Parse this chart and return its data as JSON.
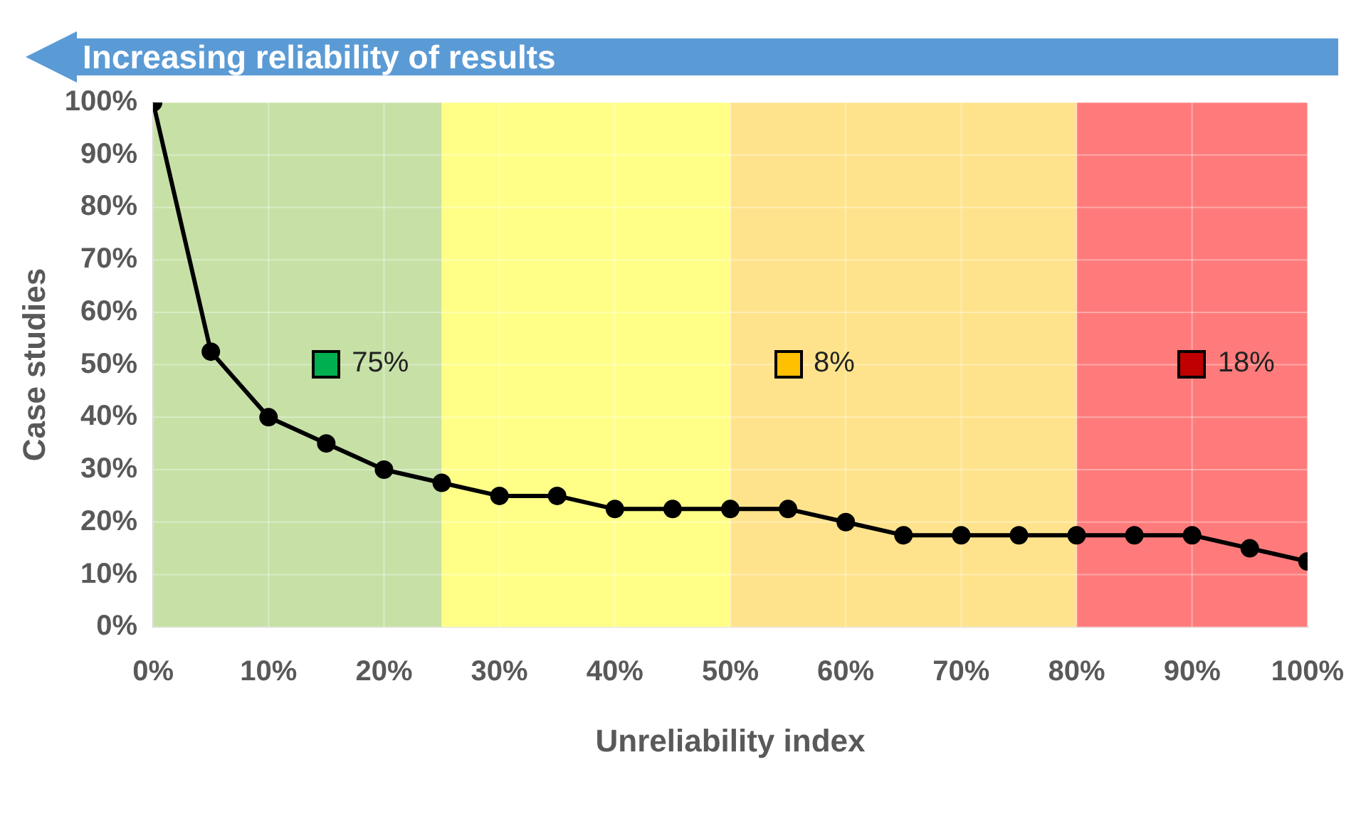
{
  "chart_data": {
    "type": "line",
    "title": "Increasing reliability of results",
    "xlabel": "Unreliability index",
    "ylabel": "Case studies",
    "x": [
      0,
      5,
      10,
      15,
      20,
      25,
      30,
      35,
      40,
      45,
      50,
      55,
      60,
      65,
      70,
      75,
      80,
      85,
      90,
      95,
      100
    ],
    "series": [
      {
        "color": "#000000",
        "values": [
          100,
          52.5,
          40,
          35,
          30,
          27.5,
          25,
          25,
          22.5,
          22.5,
          22.5,
          22.5,
          20,
          17.5,
          17.5,
          17.5,
          17.5,
          17.5,
          17.5,
          15,
          12.5
        ]
      }
    ],
    "xlim": [
      0,
      100
    ],
    "xticks": [
      {
        "value": 0,
        "label": "0%"
      },
      {
        "value": 10,
        "label": "10%"
      },
      {
        "value": 20,
        "label": "20%"
      },
      {
        "value": 30,
        "label": "30%"
      },
      {
        "value": 40,
        "label": "40%"
      },
      {
        "value": 50,
        "label": "50%"
      },
      {
        "value": 60,
        "label": "60%"
      },
      {
        "value": 70,
        "label": "70%"
      },
      {
        "value": 80,
        "label": "80%"
      },
      {
        "value": 90,
        "label": "90%"
      },
      {
        "value": 100,
        "label": "100%"
      }
    ],
    "ylim": [
      0,
      100
    ],
    "yticks": [
      {
        "value": 0,
        "label": "0%"
      },
      {
        "value": 10,
        "label": "10%"
      },
      {
        "value": 20,
        "label": "20%"
      },
      {
        "value": 30,
        "label": "30%"
      },
      {
        "value": 40,
        "label": "40%"
      },
      {
        "value": 50,
        "label": "50%"
      },
      {
        "value": 60,
        "label": "60%"
      },
      {
        "value": 70,
        "label": "70%"
      },
      {
        "value": 80,
        "label": "80%"
      },
      {
        "value": 90,
        "label": "90%"
      },
      {
        "value": 100,
        "label": "100%"
      }
    ],
    "bands": [
      {
        "axis": "x",
        "from": 0,
        "to": 25,
        "color": "#c6e0a6"
      },
      {
        "axis": "x",
        "from": 25,
        "to": 50,
        "color": "#ffff88"
      },
      {
        "axis": "x",
        "from": 50,
        "to": 80,
        "color": "#ffe38c"
      },
      {
        "axis": "x",
        "from": 80,
        "to": 100,
        "color": "#ff7b7b"
      }
    ],
    "annotations": [
      {
        "text": "75%",
        "x": 15,
        "y": 50
      },
      {
        "text": "8%",
        "x": 55,
        "y": 50
      },
      {
        "text": "18%",
        "x": 90,
        "y": 50
      }
    ],
    "grid": true,
    "legend": false,
    "marker": "circle",
    "line_style": "solid"
  }
}
